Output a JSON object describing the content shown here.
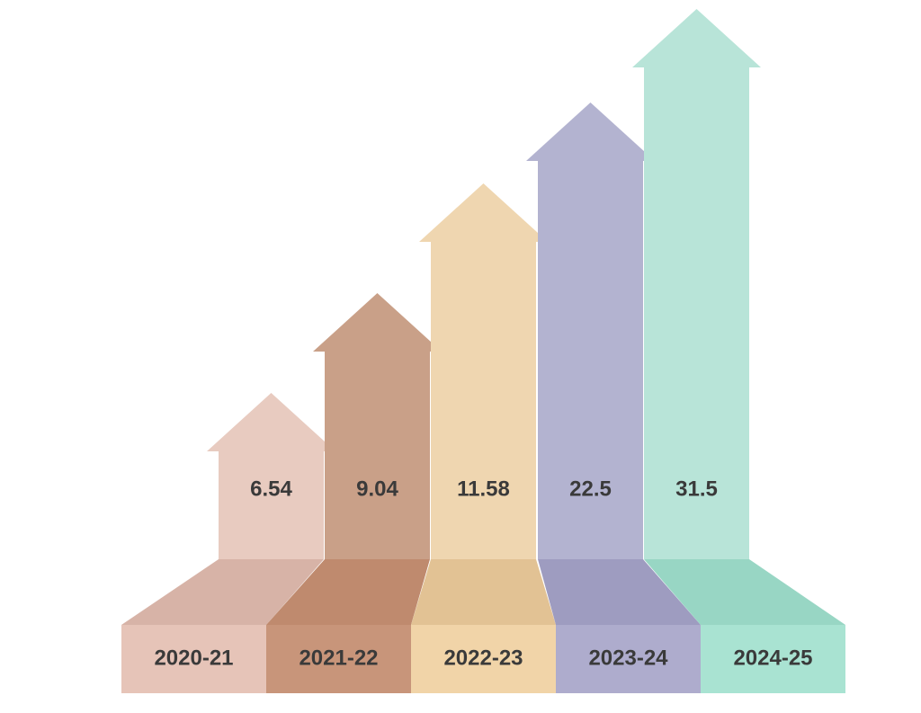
{
  "chart_data": {
    "type": "bar",
    "categories": [
      "2020-21",
      "2021-22",
      "2022-23",
      "2023-24",
      "2024-25"
    ],
    "values": [
      6.54,
      9.04,
      11.58,
      22.5,
      31.5
    ],
    "value_labels": [
      "6.54",
      "9.04",
      "11.58",
      "22.5",
      "31.5"
    ],
    "title": "",
    "xlabel": "",
    "ylabel": "",
    "grid": false,
    "legend": "none",
    "style": "stepped-arrows",
    "colors": {
      "arrows": [
        "#e8cbc0",
        "#c9a088",
        "#efd6b0",
        "#b3b3d0",
        "#b8e4d8"
      ],
      "bases": [
        "#e6c4b8",
        "#c8957a",
        "#f1d4a8",
        "#aeaccd",
        "#a9e3d2"
      ],
      "ramps": [
        "#d7b3a7",
        "#bf8a6e",
        "#e2c294",
        "#9e9cc0",
        "#98d6c4"
      ]
    }
  }
}
